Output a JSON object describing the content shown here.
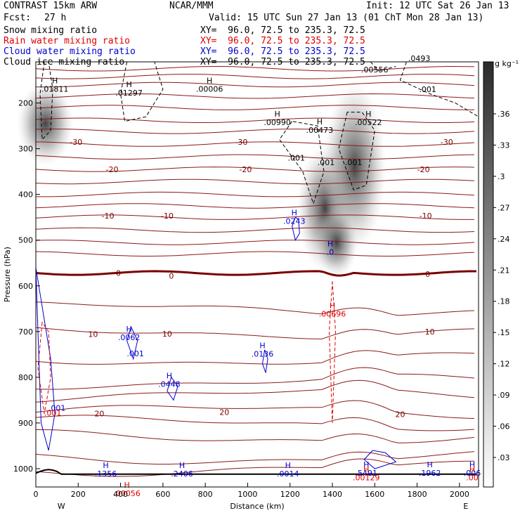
{
  "header": {
    "model": "CONTRAST 15km ARW",
    "org": "NCAR/MMM",
    "init": "Init: 12 UTC Sat 26 Jan 13",
    "fcst_label": "Fcst:",
    "fcst_value": "27 h",
    "valid": "Valid: 15 UTC Sun 27 Jan 13 (01 ChT Mon 28 Jan 13)",
    "fields": [
      {
        "name": "Snow mixing ratio",
        "xy": "XY=  96.0, 72.5 to 235.3, 72.5",
        "color": "#000000"
      },
      {
        "name": "Rain water mixing ratio",
        "xy": "XY=  96.0, 72.5 to 235.3, 72.5",
        "color": "#e00000"
      },
      {
        "name": "Cloud water mixing ratio",
        "xy": "XY=  96.0, 72.5 to 235.3, 72.5",
        "color": "#0000d0"
      },
      {
        "name": "Cloud ice mixing ratio",
        "xy": "XY=  96.0, 72.5 to 235.3, 72.5",
        "color": "#000000"
      }
    ]
  },
  "chart_data": {
    "type": "cross-section",
    "xlabel": "Distance (km)",
    "ylabel": "Pressure (hPa)",
    "x_ticks": [
      0,
      200,
      400,
      600,
      800,
      1000,
      1200,
      1400,
      1600,
      1800,
      2000
    ],
    "y_ticks": [
      200,
      300,
      400,
      500,
      600,
      700,
      800,
      900,
      1000
    ],
    "xlim": [
      0,
      2090
    ],
    "ylim": [
      1040,
      110
    ],
    "x_end_labels": {
      "left": "W",
      "right": "E"
    },
    "colorbar": {
      "unit": "g kg⁻¹",
      "ticks": [
        ".03",
        ".06",
        ".09",
        ".12",
        ".15",
        ".18",
        ".21",
        ".24",
        ".27",
        ".3",
        ".33",
        ".36"
      ]
    },
    "temperature_labels": [
      {
        "x": 190,
        "p": 285,
        "text": "-30"
      },
      {
        "x": 970,
        "p": 285,
        "text": "-30"
      },
      {
        "x": 1940,
        "p": 285,
        "text": "-30"
      },
      {
        "x": 360,
        "p": 345,
        "text": "-20"
      },
      {
        "x": 990,
        "p": 345,
        "text": "-20"
      },
      {
        "x": 1830,
        "p": 345,
        "text": "-20"
      },
      {
        "x": 340,
        "p": 447,
        "text": "-10"
      },
      {
        "x": 620,
        "p": 447,
        "text": "-10"
      },
      {
        "x": 1840,
        "p": 447,
        "text": "-10"
      },
      {
        "x": 390,
        "p": 572,
        "text": "0"
      },
      {
        "x": 640,
        "p": 578,
        "text": "0"
      },
      {
        "x": 1850,
        "p": 574,
        "text": "0"
      },
      {
        "x": 270,
        "p": 706,
        "text": "10"
      },
      {
        "x": 620,
        "p": 705,
        "text": "10"
      },
      {
        "x": 1860,
        "p": 700,
        "text": "10"
      },
      {
        "x": 300,
        "p": 879,
        "text": "20"
      },
      {
        "x": 890,
        "p": 876,
        "text": "20"
      },
      {
        "x": 1720,
        "p": 881,
        "text": "20"
      }
    ],
    "snow_labels": [
      {
        "x": 1600,
        "p": 127,
        "text": ".00556"
      },
      {
        "x": 1850,
        "p": 170,
        "text": ".001"
      },
      {
        "x": 1810,
        "p": 102,
        "text": ".0493"
      }
    ],
    "ice_maxima": [
      {
        "x": 90,
        "p": 172,
        "text": ".01811"
      },
      {
        "x": 440,
        "p": 181,
        "text": ".01297"
      },
      {
        "x": 820,
        "p": 172,
        "text": ".00006"
      },
      {
        "x": 1140,
        "p": 245,
        "text": ".00990"
      },
      {
        "x": 1340,
        "p": 262,
        "text": ".00473"
      },
      {
        "x": 1570,
        "p": 245,
        "text": ".00522"
      }
    ],
    "ice_labels": [
      {
        "x": 1230,
        "p": 320,
        "text": ".001"
      },
      {
        "x": 1370,
        "p": 330,
        "text": ".001"
      },
      {
        "x": 1500,
        "p": 330,
        "text": ".001"
      }
    ],
    "cloud_water_maxima": [
      {
        "x": 1220,
        "p": 461,
        "text": ".0243"
      },
      {
        "x": 1390,
        "p": 529,
        "text": ".0"
      },
      {
        "x": 440,
        "p": 716,
        "text": ".0062"
      },
      {
        "x": 1070,
        "p": 752,
        "text": ".0136"
      },
      {
        "x": 630,
        "p": 818,
        "text": ".0448"
      },
      {
        "x": 330,
        "p": 1014,
        "text": ".1356"
      },
      {
        "x": 690,
        "p": 1014,
        "text": ".2406"
      },
      {
        "x": 1190,
        "p": 1014,
        "text": ".0014"
      },
      {
        "x": 1560,
        "p": 1012,
        "text": ".5491"
      },
      {
        "x": 1860,
        "p": 1012,
        "text": ".1962"
      },
      {
        "x": 2060,
        "p": 1012,
        "text": ".006"
      }
    ],
    "cloud_water_labels": [
      {
        "x": 470,
        "p": 748,
        "text": ".001"
      },
      {
        "x": 100,
        "p": 867,
        "text": ".001"
      }
    ],
    "rain_maxima": [
      {
        "x": 1400,
        "p": 664,
        "text": ".00696"
      },
      {
        "x": 430,
        "p": 1057,
        "text": ".00056"
      },
      {
        "x": 1560,
        "p": 1022,
        "text": ".00129"
      },
      {
        "x": 2060,
        "p": 1022,
        "text": ".00"
      }
    ],
    "rain_labels": [
      {
        "x": 80,
        "p": 878,
        "text": ".001"
      }
    ]
  }
}
